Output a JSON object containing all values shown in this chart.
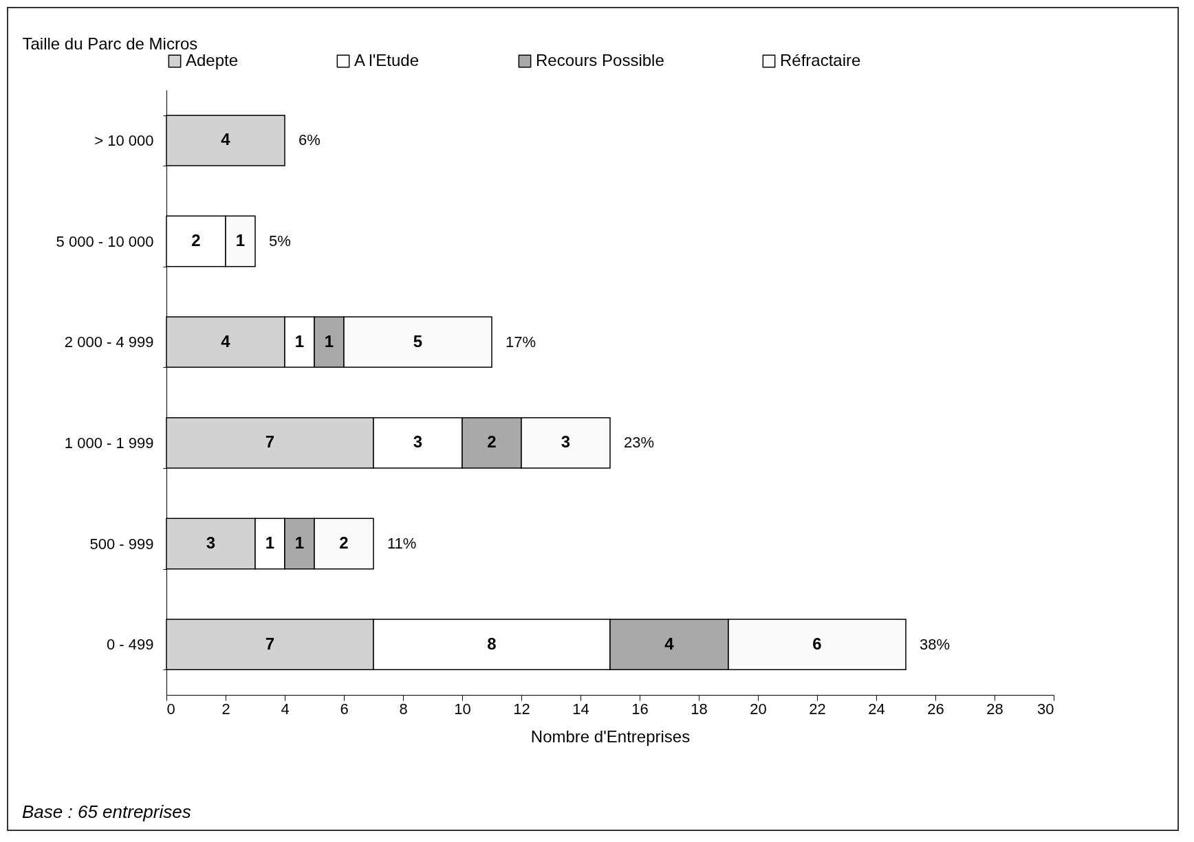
{
  "chart_data": {
    "type": "bar",
    "orientation": "horizontal",
    "stacked": true,
    "ylabel": "Taille du Parc de Micros",
    "xlabel": "Nombre d'Entreprises",
    "categories": [
      "> 10 000",
      "5 000 - 10 000",
      "2 000 - 4 999",
      "1 000 - 1 999",
      "500 - 999",
      "0 - 499"
    ],
    "series": [
      {
        "name": "Adepte",
        "color": "#d2d2d2",
        "values": [
          4,
          null,
          4,
          7,
          3,
          7
        ]
      },
      {
        "name": "A l'Etude",
        "color": "#ffffff",
        "values": [
          null,
          2,
          1,
          3,
          1,
          8
        ]
      },
      {
        "name": "Recours Possible",
        "color": "#a9a9a9",
        "values": [
          null,
          null,
          1,
          2,
          1,
          4
        ]
      },
      {
        "name": "Réfractaire",
        "color": "#fafafa",
        "values": [
          null,
          1,
          5,
          3,
          2,
          6
        ]
      }
    ],
    "data_labels": true,
    "legend": "top",
    "grid": false,
    "xlim": [
      0,
      30
    ],
    "xticks": [
      0,
      2,
      4,
      6,
      8,
      10,
      12,
      14,
      16,
      18,
      20,
      22,
      24,
      26,
      28,
      30
    ],
    "annotations": [
      {
        "text": "6%",
        "x": 4,
        "y": "> 10 000"
      },
      {
        "text": "5%",
        "x": 3,
        "y": "5 000 - 10 000"
      },
      {
        "text": "17%",
        "x": 11,
        "y": "2 000 - 4 999"
      },
      {
        "text": "23%",
        "x": 15,
        "y": "1 000 - 1 999"
      },
      {
        "text": "11%",
        "x": 7,
        "y": "500 - 999"
      },
      {
        "text": "38%",
        "x": 25,
        "y": "0 - 499"
      },
      "Base : 65 entreprises"
    ]
  }
}
